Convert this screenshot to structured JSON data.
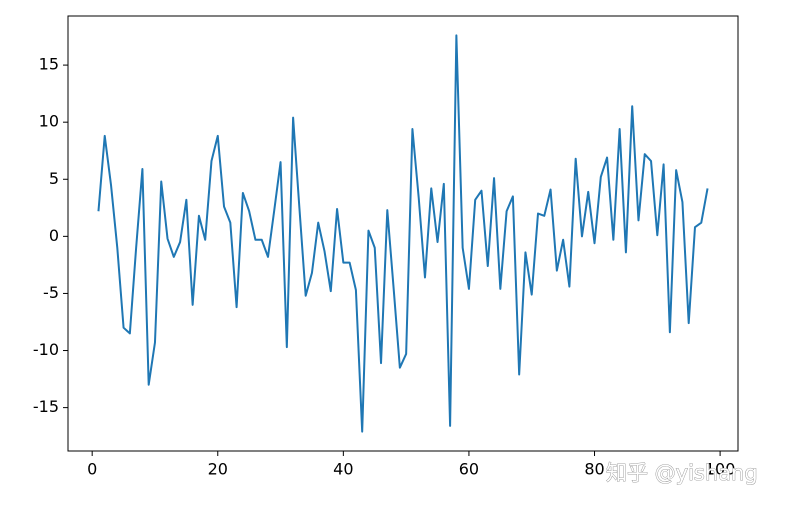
{
  "chart_data": {
    "type": "line",
    "x": [
      1,
      2,
      3,
      4,
      5,
      6,
      7,
      8,
      9,
      10,
      11,
      12,
      13,
      14,
      15,
      16,
      17,
      18,
      19,
      20,
      21,
      22,
      23,
      24,
      25,
      26,
      27,
      28,
      29,
      30,
      31,
      32,
      33,
      34,
      35,
      36,
      37,
      38,
      39,
      40,
      41,
      42,
      43,
      44,
      45,
      46,
      47,
      48,
      49,
      50,
      51,
      52,
      53,
      54,
      55,
      56,
      57,
      58,
      59,
      60,
      61,
      62,
      63,
      64,
      65,
      66,
      67,
      68,
      69,
      70,
      71,
      72,
      73,
      74,
      75,
      76,
      77,
      78,
      79,
      80,
      81,
      82,
      83,
      84,
      85,
      86,
      87,
      88,
      89,
      90,
      91,
      92,
      93,
      94,
      95,
      96,
      97,
      98
    ],
    "series": [
      {
        "color": "#1f77b4",
        "values": [
          2.2,
          8.8,
          4.5,
          -1,
          -8,
          -8.5,
          -1,
          5.9,
          -13,
          -9.3,
          4.8,
          -0.2,
          -1.8,
          -0.5,
          3.2,
          -6,
          1.8,
          -0.3,
          6.6,
          8.8,
          2.6,
          1.2,
          -6.2,
          3.8,
          2.2,
          -0.3,
          -0.3,
          -1.8,
          2.3,
          6.5,
          -9.7,
          10.4,
          2.5,
          -5.2,
          -3.2,
          1.2,
          -1.3,
          -4.8,
          2.4,
          -2.3,
          -2.3,
          -4.7,
          -17.1,
          0.5,
          -1,
          -11.1,
          2.3,
          -4.5,
          -11.5,
          -10.3,
          9.4,
          3.4,
          -3.6,
          4.2,
          -0.5,
          4.6,
          -16.6,
          17.6,
          -1,
          -4.6,
          3.2,
          4,
          -2.6,
          5.1,
          -4.6,
          2.2,
          3.5,
          -12.1,
          -1.4,
          -5.1,
          2,
          1.8,
          4.1,
          -3,
          -0.3,
          -4.4,
          6.8,
          0,
          3.9,
          -0.6,
          5.2,
          6.9,
          -0.3,
          9.4,
          -1.4,
          11.4,
          1.4,
          7.2,
          6.6,
          0.1,
          6.3,
          -8.4,
          5.8,
          3,
          -7.6,
          0.8,
          1.2,
          4.2
        ]
      }
    ],
    "xlim": [
      -3.85,
      102.85
    ],
    "xticks": [
      0,
      20,
      40,
      60,
      80,
      100
    ],
    "ylim": [
      -18.8,
      19.3
    ],
    "yticks": [
      -15,
      -10,
      -5,
      0,
      5,
      10,
      15
    ],
    "grid": false,
    "annotation": "知乎 @yishang"
  }
}
